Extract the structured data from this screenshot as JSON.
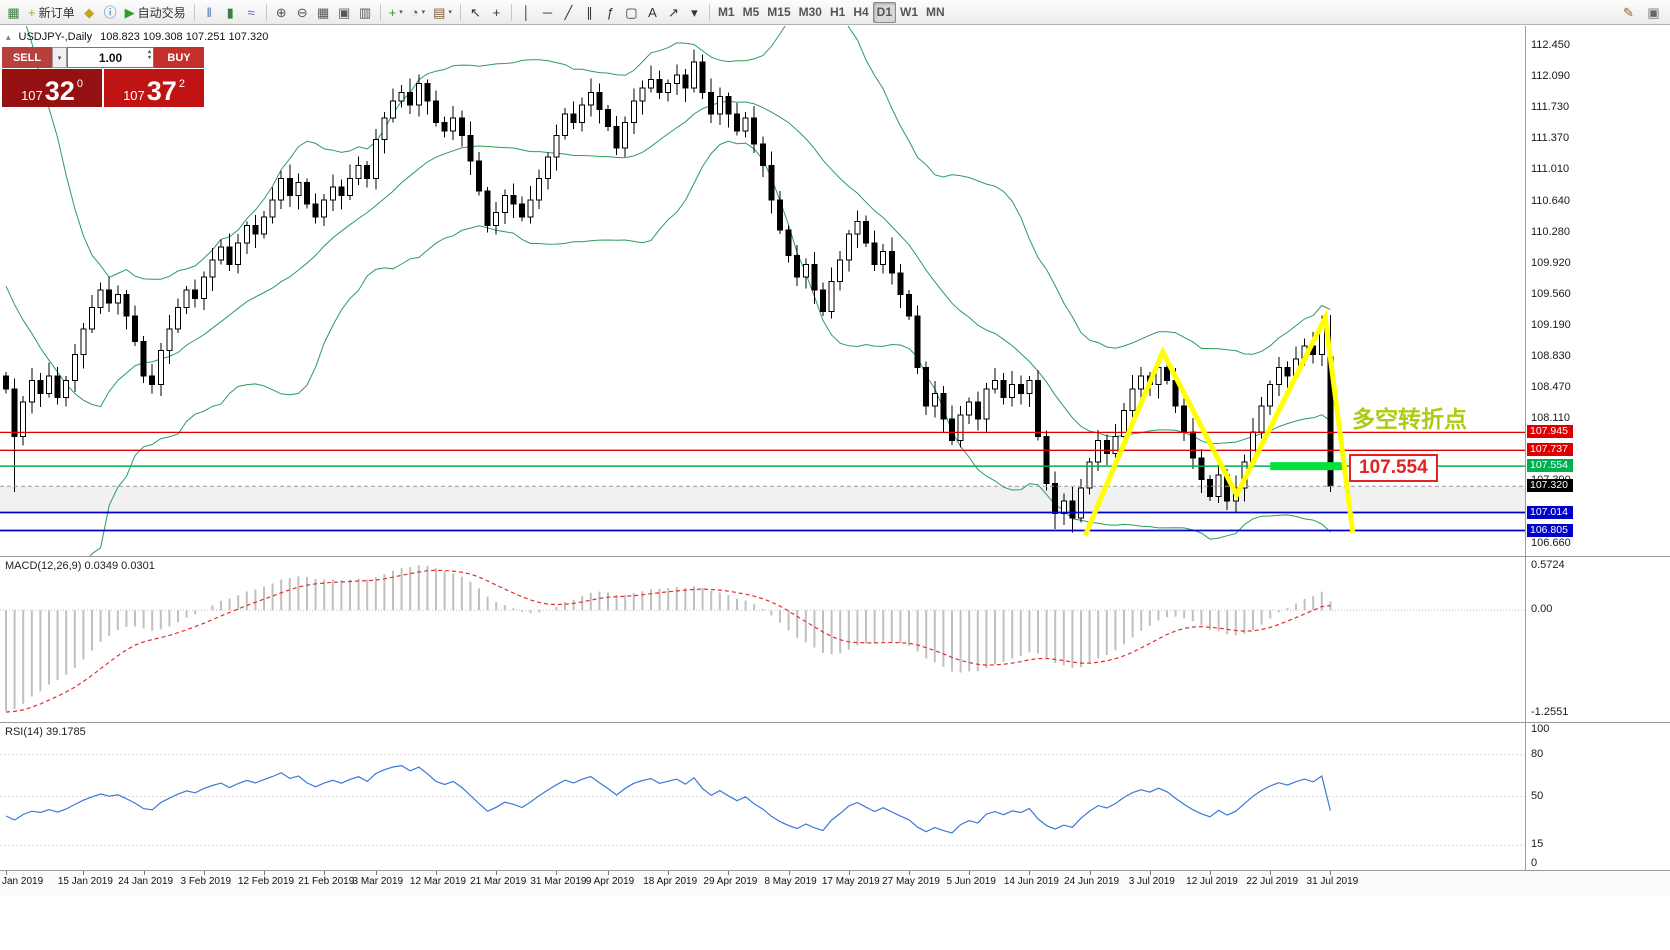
{
  "toolbar": {
    "groups": [
      {
        "items": [
          {
            "name": "chart-window-icon",
            "glyph": "▦",
            "color": "#3f7d3f"
          },
          {
            "name": "new-order-button",
            "glyph": "+",
            "color": "#c8a20a",
            "label": "新订单"
          },
          {
            "name": "chart-profiles-icon",
            "glyph": "◆",
            "color": "#c8a21c"
          },
          {
            "name": "data-window-icon",
            "glyph": "ⓘ",
            "color": "#2b6cb0"
          },
          {
            "name": "autotrading-button",
            "glyph": "▶",
            "color": "#2f9e2f",
            "label": "自动交易"
          }
        ]
      },
      {
        "items": [
          {
            "name": "bar-chart-button",
            "glyph": "‖",
            "color": "#4a6fae"
          },
          {
            "name": "candlestick-chart-button",
            "glyph": "▮",
            "color": "#3f7d3f"
          },
          {
            "name": "line-chart-button",
            "glyph": "≈",
            "color": "#4a6fae"
          }
        ]
      },
      {
        "items": [
          {
            "name": "zoom-in-button",
            "glyph": "⊕",
            "color": "#555555"
          },
          {
            "name": "zoom-out-button",
            "glyph": "⊖",
            "color": "#555555"
          },
          {
            "name": "tile-windows-button",
            "glyph": "▦",
            "color": "#555555"
          },
          {
            "name": "cascade-windows-button",
            "glyph": "▣",
            "color": "#555555"
          },
          {
            "name": "arrange-windows-button",
            "glyph": "▥",
            "color": "#555555"
          }
        ]
      },
      {
        "items": [
          {
            "name": "indicators-button",
            "glyph": "+",
            "color": "#2f9e2f",
            "dropdown": true
          },
          {
            "name": "periods-button",
            "glyph": "◔",
            "color": "#555555",
            "dropdown": true
          },
          {
            "name": "templates-button",
            "glyph": "▤",
            "color": "#7a5c2e",
            "dropdown": true
          }
        ]
      },
      {
        "items": [
          {
            "name": "cursor-button",
            "glyph": "↖",
            "color": "#333333"
          },
          {
            "name": "crosshair-button",
            "glyph": "+",
            "color": "#333333"
          }
        ]
      },
      {
        "items": [
          {
            "name": "vertical-line-button",
            "glyph": "│",
            "color": "#333333"
          },
          {
            "name": "horizontal-line-button",
            "glyph": "─",
            "color": "#333333"
          },
          {
            "name": "trendline-button",
            "glyph": "╱",
            "color": "#333333"
          },
          {
            "name": "channel-button",
            "glyph": "∥",
            "color": "#333333"
          },
          {
            "name": "fibonacci-button",
            "glyph": "ƒ",
            "color": "#333333"
          },
          {
            "name": "shapes-button",
            "glyph": "▢",
            "color": "#333333"
          },
          {
            "name": "text-button",
            "glyph": "A",
            "color": "#333333"
          },
          {
            "name": "arrow-label-button",
            "glyph": "↗",
            "color": "#333333"
          },
          {
            "name": "objects-dropdown",
            "glyph": "▾",
            "color": "#333333"
          }
        ]
      },
      {
        "items": [
          {
            "name": "timeframe-m1",
            "label": "M1",
            "tf": true
          },
          {
            "name": "timeframe-m5",
            "label": "M5",
            "tf": true
          },
          {
            "name": "timeframe-m15",
            "label": "M15",
            "tf": true
          },
          {
            "name": "timeframe-m30",
            "label": "M30",
            "tf": true
          },
          {
            "name": "timeframe-h1",
            "label": "H1",
            "tf": true
          },
          {
            "name": "timeframe-h4",
            "label": "H4",
            "tf": true
          },
          {
            "name": "timeframe-d1",
            "label": "D1",
            "tf": true,
            "active": true
          },
          {
            "name": "timeframe-w1",
            "label": "W1",
            "tf": true
          },
          {
            "name": "timeframe-mn",
            "label": "MN",
            "tf": true
          }
        ]
      }
    ],
    "right_items": [
      {
        "name": "pencil-icon",
        "glyph": "✎",
        "color": "#8a6d1a"
      },
      {
        "name": "panel-icon",
        "glyph": "▣",
        "color": "#666666"
      }
    ]
  },
  "symbol_header": {
    "title": "USDJPY-,Daily",
    "ohlc": "108.823 109.308 107.251 107.320"
  },
  "trade_panel": {
    "sell_label": "SELL",
    "buy_label": "BUY",
    "volume": "1.00",
    "sell_price": {
      "big": "107",
      "pips": "32",
      "sup": "0"
    },
    "buy_price": {
      "big": "107",
      "pips": "37",
      "sup": "2"
    },
    "colors": {
      "sell_top": "#b8403c",
      "buy_top": "#c4312c",
      "sell_main": "#951111",
      "buy_main": "#c01414"
    }
  },
  "annotation": {
    "text": "多空转折点",
    "color": "#aacc11"
  },
  "price_flag": {
    "text": "107.554",
    "color": "#e32222"
  },
  "chart_data": {
    "type": "candlestick",
    "symbol": "USDJPY-",
    "timeframe": "Daily",
    "title_ohlc": {
      "open": 108.823,
      "high": 109.308,
      "low": 107.251,
      "close": 107.32
    },
    "y_axis": {
      "min": 106.66,
      "max": 112.45,
      "labels": [
        "112.450",
        "112.090",
        "111.730",
        "111.370",
        "111.010",
        "110.640",
        "110.280",
        "109.920",
        "109.560",
        "109.190",
        "108.830",
        "108.470",
        "108.110",
        "107.750",
        "107.390",
        "107.030",
        "106.660"
      ]
    },
    "x_ticks": [
      [
        "Jan 2019",
        0
      ],
      [
        "15 Jan 2019",
        9
      ],
      [
        "24 Jan 2019",
        16
      ],
      [
        "3 Feb 2019",
        23
      ],
      [
        "12 Feb 2019",
        30
      ],
      [
        "21 Feb 2019",
        37
      ],
      [
        "3 Mar 2019",
        43
      ],
      [
        "12 Mar 2019",
        50
      ],
      [
        "21 Mar 2019",
        57
      ],
      [
        "31 Mar 2019",
        64
      ],
      [
        "9 Apr 2019",
        70
      ],
      [
        "18 Apr 2019",
        77
      ],
      [
        "29 Apr 2019",
        84
      ],
      [
        "8 May 2019",
        91
      ],
      [
        "17 May 2019",
        98
      ],
      [
        "27 May 2019",
        105
      ],
      [
        "5 Jun 2019",
        112
      ],
      [
        "14 Jun 2019",
        119
      ],
      [
        "24 Jun 2019",
        126
      ],
      [
        "3 Jul 2019",
        133
      ],
      [
        "12 Jul 2019",
        140
      ],
      [
        "22 Jul 2019",
        147
      ],
      [
        "31 Jul 2019",
        154
      ]
    ],
    "closes": [
      108.45,
      107.9,
      108.3,
      108.55,
      108.4,
      108.6,
      108.35,
      108.55,
      108.85,
      109.15,
      109.4,
      109.6,
      109.45,
      109.55,
      109.3,
      109.0,
      108.6,
      108.5,
      108.9,
      109.15,
      109.4,
      109.6,
      109.5,
      109.75,
      109.95,
      110.1,
      109.9,
      110.15,
      110.35,
      110.25,
      110.45,
      110.65,
      110.9,
      110.7,
      110.85,
      110.6,
      110.45,
      110.65,
      110.8,
      110.7,
      110.9,
      111.05,
      110.9,
      111.35,
      111.6,
      111.8,
      111.9,
      111.75,
      112.0,
      111.8,
      111.55,
      111.45,
      111.6,
      111.4,
      111.1,
      110.75,
      110.35,
      110.5,
      110.7,
      110.6,
      110.45,
      110.65,
      110.9,
      111.15,
      111.4,
      111.65,
      111.55,
      111.75,
      111.9,
      111.7,
      111.5,
      111.25,
      111.55,
      111.8,
      111.95,
      112.05,
      111.9,
      112.0,
      112.1,
      111.95,
      112.25,
      111.9,
      111.65,
      111.85,
      111.65,
      111.45,
      111.6,
      111.3,
      111.05,
      110.65,
      110.3,
      110.0,
      109.75,
      109.9,
      109.6,
      109.35,
      109.7,
      109.95,
      110.25,
      110.4,
      110.15,
      109.9,
      110.05,
      109.8,
      109.55,
      109.3,
      108.7,
      108.25,
      108.4,
      108.1,
      107.85,
      108.15,
      108.3,
      108.1,
      108.45,
      108.55,
      108.35,
      108.5,
      108.4,
      108.55,
      107.9,
      107.35,
      107.0,
      107.15,
      106.95,
      107.3,
      107.6,
      107.85,
      107.7,
      107.9,
      108.2,
      108.45,
      108.6,
      108.5,
      108.7,
      108.55,
      108.25,
      107.95,
      107.65,
      107.4,
      107.2,
      107.45,
      107.15,
      107.3,
      107.6,
      107.95,
      108.25,
      108.5,
      108.7,
      108.6,
      108.8,
      108.95,
      108.85,
      109.2,
      107.32
    ],
    "warmup_closes": [
      113.4,
      113.2,
      113.45,
      113.1,
      112.85,
      113.0,
      112.7,
      112.4,
      112.6,
      112.3,
      112.0,
      112.2,
      111.9,
      111.6,
      111.8,
      111.45,
      111.15,
      111.35,
      111.0,
      110.7,
      110.4,
      110.1,
      105.9,
      107.0,
      107.6,
      107.3,
      107.9,
      108.3,
      108.2,
      108.6
    ],
    "candle_overrides": {
      "1": {
        "l": 107.25
      },
      "80": {
        "h": 112.4
      },
      "122": {
        "l": 106.82
      },
      "124": {
        "l": 106.78
      },
      "154": {
        "o": 108.82,
        "h": 109.31,
        "l": 107.25,
        "c": 107.32
      }
    },
    "overlays": {
      "bollinger_period": 20,
      "bollinger_color": "#2c9c5c"
    },
    "levels": {
      "red": {
        "color": "#dd0000",
        "values": [
          107.945,
          107.737
        ]
      },
      "green": {
        "color": "#00b050",
        "values": [
          107.554
        ]
      },
      "blue": {
        "color": "#0000cc",
        "values": [
          107.014,
          106.805
        ]
      },
      "current_price": {
        "color": "#999999",
        "value": 107.32
      }
    },
    "drawings": {
      "zigzag": {
        "color": "#ffff00",
        "width": 5,
        "points": [
          [
            125.5,
            106.75
          ],
          [
            134.5,
            108.88
          ],
          [
            143.1,
            107.22
          ],
          [
            153.4,
            109.28
          ],
          [
            156.6,
            106.78
          ]
        ]
      },
      "green_segment": {
        "color": "#00e13c",
        "width": 8,
        "from_i": 147,
        "to_i": 155.4,
        "price": 107.554
      }
    },
    "macd": {
      "label": "MACD(12,26,9) 0.0349 0.0301",
      "fast": 12,
      "slow": 26,
      "signal": 9,
      "scale_labels": [
        "0.5724",
        "0.00",
        "-1.2551"
      ],
      "max": 0.5724,
      "min": -1.2551,
      "histogram_color": "#c0c0c0",
      "signal_color": "#e03030"
    },
    "rsi": {
      "label": "RSI(14) 39.1785",
      "period": 14,
      "value": 39.1785,
      "levels": [
        100,
        80,
        50,
        15,
        0
      ],
      "color": "#3c78d8"
    }
  }
}
